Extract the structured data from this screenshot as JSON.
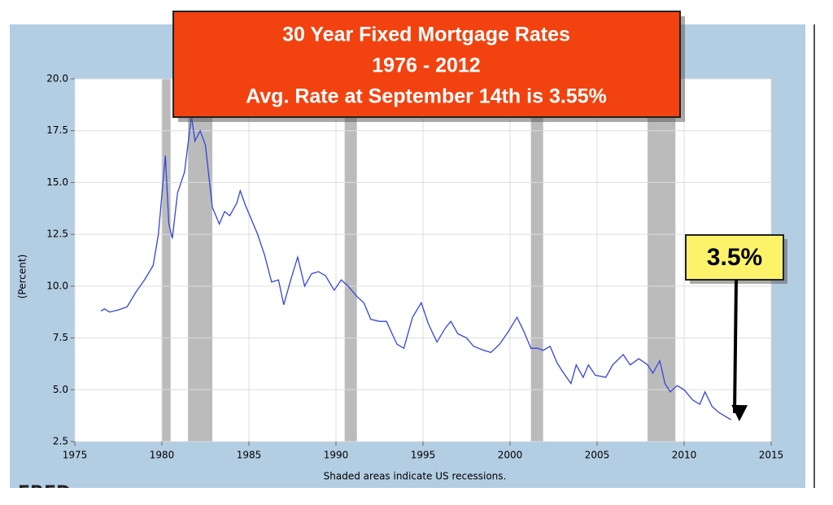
{
  "chart_data": {
    "type": "line",
    "title": "30 Year Fixed Mortgage Rates",
    "subtitle": "1976 - 2012",
    "headline_note": "Avg. Rate at  September 14th  is 3.55%",
    "callout": "3.5%",
    "ylabel": "(Percent)",
    "footnote": "Shaded areas indicate US recessions.",
    "logo": "FRED",
    "color": "#3344dd",
    "grid": true,
    "xlim": [
      1975,
      2015
    ],
    "ylim": [
      2.5,
      20
    ],
    "xticks": [
      1975,
      1980,
      1985,
      1990,
      1995,
      2000,
      2005,
      2010,
      2015
    ],
    "yticks": [
      2.5,
      {
        "value": 5,
        "label": "5.0"
      },
      7.5,
      {
        "value": 10,
        "label": "10.0"
      },
      12.5,
      {
        "value": 15,
        "label": "15.0"
      },
      17.5,
      {
        "value": 20,
        "label": "20.0"
      }
    ],
    "recessions": [
      [
        1980.0,
        1980.5
      ],
      [
        1981.5,
        1982.9
      ],
      [
        1990.5,
        1991.2
      ],
      [
        2001.2,
        2001.9
      ],
      [
        2007.9,
        2009.5
      ]
    ],
    "x": [
      1976.5,
      1976.7,
      1977.0,
      1977.5,
      1978.0,
      1978.5,
      1979.0,
      1979.5,
      1979.8,
      1980.2,
      1980.4,
      1980.6,
      1980.9,
      1981.3,
      1981.7,
      1981.9,
      1982.2,
      1982.5,
      1982.9,
      1983.3,
      1983.6,
      1983.9,
      1984.3,
      1984.5,
      1984.8,
      1985.2,
      1985.5,
      1985.9,
      1986.3,
      1986.7,
      1987.0,
      1987.4,
      1987.8,
      1988.2,
      1988.6,
      1989.0,
      1989.4,
      1989.9,
      1990.3,
      1990.7,
      1991.2,
      1991.6,
      1992.0,
      1992.5,
      1992.9,
      1993.5,
      1993.9,
      1994.4,
      1994.9,
      1995.3,
      1995.8,
      1996.3,
      1996.6,
      1997.0,
      1997.5,
      1997.9,
      1998.5,
      1998.9,
      1999.4,
      1999.9,
      2000.4,
      2000.8,
      2001.2,
      2001.6,
      2001.9,
      2002.3,
      2002.7,
      2003.0,
      2003.5,
      2003.8,
      2004.2,
      2004.5,
      2004.9,
      2005.5,
      2005.9,
      2006.5,
      2006.9,
      2007.4,
      2007.9,
      2008.2,
      2008.6,
      2008.9,
      2009.2,
      2009.6,
      2010.0,
      2010.5,
      2010.9,
      2011.2,
      2011.6,
      2012.0,
      2012.4,
      2012.7
    ],
    "values": [
      8.8,
      8.9,
      8.75,
      8.85,
      9.0,
      9.7,
      10.3,
      11.0,
      12.5,
      16.3,
      13.0,
      12.3,
      14.5,
      15.5,
      18.2,
      17.0,
      17.5,
      16.8,
      13.8,
      13.0,
      13.6,
      13.4,
      14.0,
      14.6,
      13.9,
      13.1,
      12.5,
      11.5,
      10.2,
      10.3,
      9.1,
      10.3,
      11.4,
      10.0,
      10.6,
      10.7,
      10.5,
      9.8,
      10.3,
      10.0,
      9.5,
      9.2,
      8.4,
      8.3,
      8.3,
      7.2,
      7.0,
      8.5,
      9.2,
      8.2,
      7.3,
      8.0,
      8.3,
      7.7,
      7.5,
      7.1,
      6.9,
      6.8,
      7.2,
      7.8,
      8.5,
      7.8,
      7.0,
      7.0,
      6.9,
      7.1,
      6.3,
      5.9,
      5.3,
      6.2,
      5.6,
      6.2,
      5.7,
      5.6,
      6.2,
      6.7,
      6.2,
      6.5,
      6.2,
      5.8,
      6.4,
      5.3,
      4.9,
      5.2,
      5.0,
      4.5,
      4.3,
      4.9,
      4.2,
      3.9,
      3.7,
      3.55
    ]
  }
}
